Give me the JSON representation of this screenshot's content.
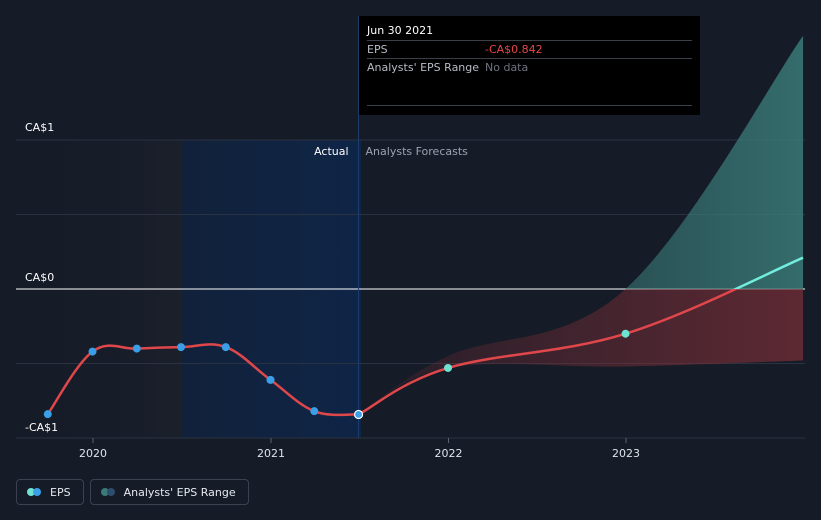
{
  "tooltip": {
    "date": "Jun 30 2021",
    "rows": [
      {
        "label": "EPS",
        "value": "-CA$0.842"
      },
      {
        "label": "Analysts' EPS Range",
        "value": "No data"
      }
    ]
  },
  "legend": {
    "eps": "EPS",
    "range": "Analysts' EPS Range"
  },
  "colors": {
    "background": "#151b27",
    "eps_line": "#e0474b",
    "eps_marker": "#3a9fe6",
    "forecast_marker": "#6fe3d1",
    "forecast_positive_line": "#72ecdc",
    "range_positive_fill": "#3a7a78",
    "range_negative_fill": "#7c2f37",
    "highlight_band": "#0f2547"
  },
  "chart_data": {
    "type": "line",
    "y_labels": [
      "CA$1",
      "CA$0",
      "-CA$1"
    ],
    "ylim": [
      -1,
      1
    ],
    "x_ticks": [
      "2020",
      "2021",
      "2022",
      "2023"
    ],
    "region_labels": {
      "actual": "Actual",
      "forecast": "Analysts Forecasts"
    },
    "series": [
      {
        "name": "EPS",
        "kind": "actual",
        "x": [
          "2019-09-30",
          "2019-12-31",
          "2020-03-31",
          "2020-06-30",
          "2020-09-30",
          "2020-12-31",
          "2021-03-31",
          "2021-06-30"
        ],
        "y": [
          -0.84,
          -0.42,
          -0.4,
          -0.39,
          -0.39,
          -0.61,
          -0.82,
          -0.842
        ]
      },
      {
        "name": "EPS",
        "kind": "forecast",
        "x": [
          "2021-06-30",
          "2021-12-31",
          "2022-12-31",
          "2023-12-31"
        ],
        "y": [
          -0.842,
          -0.53,
          -0.3,
          0.21
        ]
      }
    ],
    "range_band": {
      "x": [
        "2021-06-30",
        "2021-12-31",
        "2022-12-31",
        "2023-12-31"
      ],
      "high": [
        -0.842,
        -0.45,
        0.0,
        1.7
      ],
      "low": [
        -0.842,
        -0.53,
        -0.52,
        -0.48
      ]
    },
    "highlight_x": "2021-06-30"
  }
}
